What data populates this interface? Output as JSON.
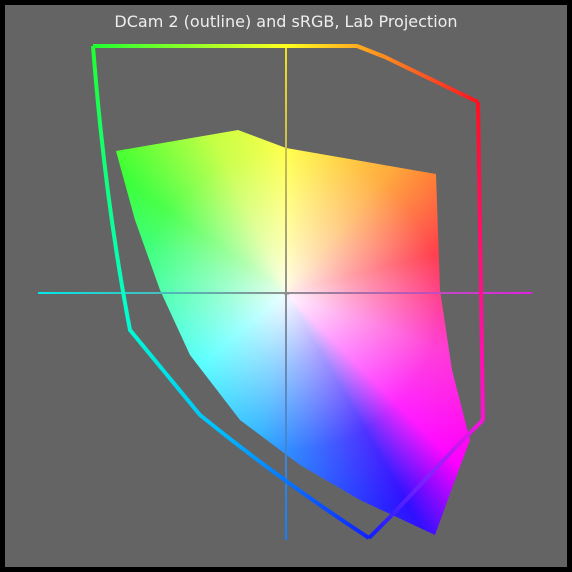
{
  "title": "DCam 2 (outline) and sRGB, Lab Projection"
}
